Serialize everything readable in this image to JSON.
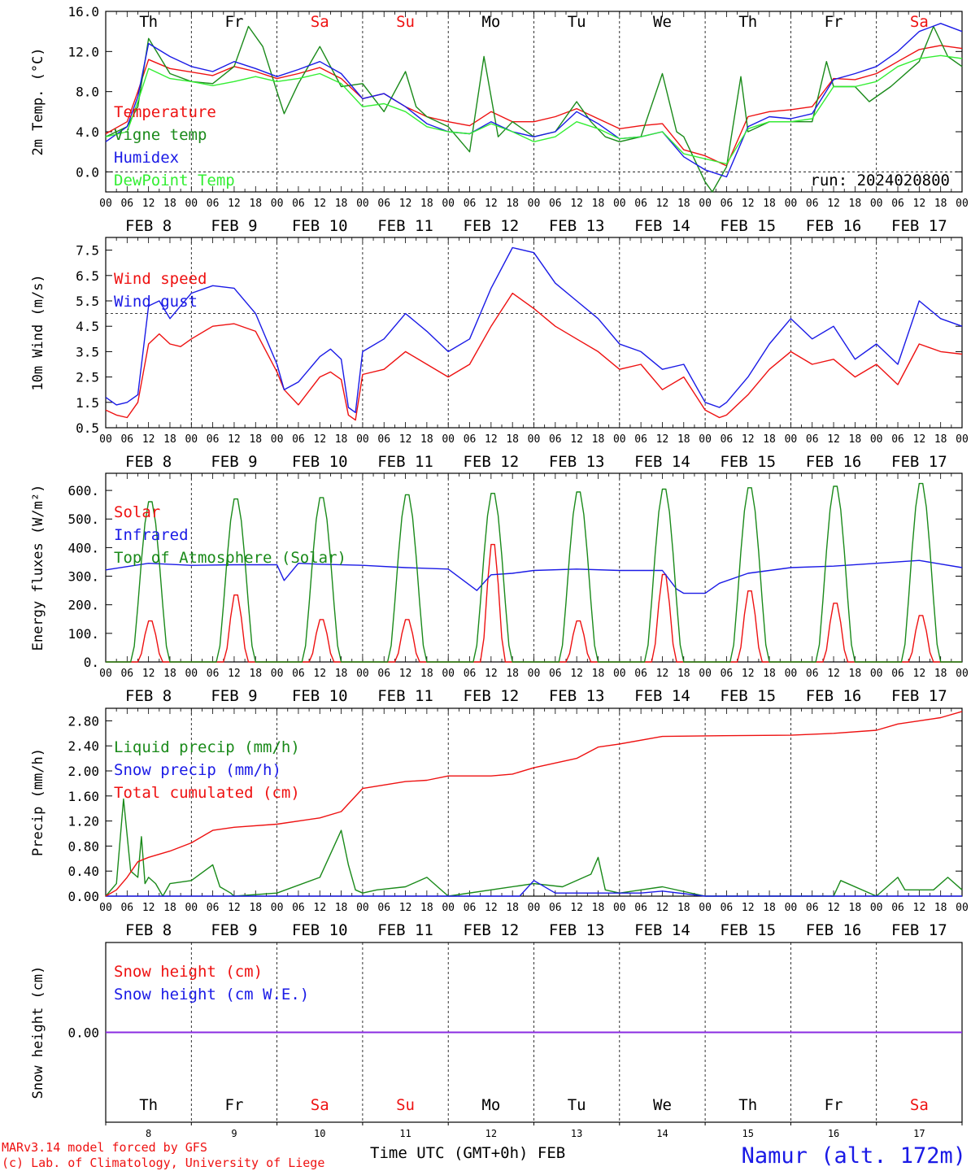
{
  "colors": {
    "red": "#ee1111",
    "dark_green": "#1a8a1a",
    "blue": "#1a1ae6",
    "light_green": "#33ee33",
    "purple": "#8a2be2",
    "axis": "#000000"
  },
  "timeline": {
    "hour_ticks": [
      "00",
      "06",
      "12",
      "18"
    ],
    "final_hour": "00",
    "date_labels": [
      "FEB  8",
      "FEB  9",
      "FEB 10",
      "FEB 11",
      "FEB 12",
      "FEB 13",
      "FEB 14",
      "FEB 15",
      "FEB 16",
      "FEB 17"
    ],
    "weekdays": [
      "Th",
      "Fr",
      "Sa",
      "Su",
      "Mo",
      "Tu",
      "We",
      "Th",
      "Fr",
      "Sa"
    ],
    "weekend_flags": [
      false,
      false,
      true,
      true,
      false,
      false,
      false,
      false,
      false,
      true
    ],
    "day_numbers": [
      "8",
      "9",
      "10",
      "11",
      "12",
      "13",
      "14",
      "15",
      "16",
      "17"
    ]
  },
  "chart_data": [
    {
      "type": "line",
      "ylabel": "2m Temp. (°C)",
      "ylim": [
        -2.0,
        16.0
      ],
      "yticks": [
        0.0,
        4.0,
        8.0,
        12.0,
        16.0
      ],
      "ytick_labels": [
        "0.0",
        "4.0",
        "8.0",
        "12.0",
        "16.0"
      ],
      "reference_line": 0.0,
      "annotation": "run: 2024020800",
      "x_unit": "hours since FEB 8 00 UTC",
      "series": [
        {
          "name": "Temperature",
          "color": "#ee1111",
          "x": [
            0,
            6,
            9,
            12,
            18,
            30,
            36,
            42,
            48,
            54,
            60,
            66,
            72,
            78,
            84,
            90,
            96,
            102,
            108,
            114,
            120,
            126,
            132,
            138,
            144,
            150,
            156,
            162,
            168,
            174,
            180,
            186,
            192,
            198,
            204,
            210,
            216,
            222,
            228,
            234,
            240
          ],
          "y": [
            3.8,
            5.0,
            8.0,
            11.2,
            10.3,
            9.6,
            10.5,
            10.0,
            9.3,
            9.8,
            10.4,
            9.3,
            7.3,
            7.8,
            6.5,
            5.5,
            5.0,
            4.6,
            6.0,
            5.0,
            5.0,
            5.5,
            6.3,
            5.3,
            4.3,
            4.6,
            4.8,
            2.2,
            1.6,
            0.6,
            5.5,
            6.0,
            6.2,
            6.5,
            9.3,
            9.2,
            9.8,
            11.0,
            12.2,
            12.6,
            12.3
          ]
        },
        {
          "name": "Vigne temp",
          "color": "#1a8a1a",
          "x": [
            0,
            6,
            9,
            12,
            18,
            24,
            30,
            36,
            40,
            44,
            48,
            50,
            54,
            60,
            66,
            72,
            78,
            84,
            87,
            90,
            96,
            102,
            106,
            110,
            114,
            120,
            126,
            132,
            136,
            140,
            144,
            150,
            156,
            160,
            162,
            168,
            170,
            174,
            178,
            180,
            186,
            192,
            198,
            202,
            204,
            210,
            214,
            220,
            228,
            232,
            236,
            240
          ],
          "y": [
            3.5,
            4.5,
            6.5,
            13.3,
            9.8,
            9.0,
            8.8,
            10.5,
            14.5,
            12.5,
            8.0,
            5.8,
            8.8,
            12.5,
            8.5,
            8.8,
            6.0,
            10.0,
            6.5,
            5.5,
            4.5,
            2.0,
            11.5,
            3.5,
            5.0,
            3.5,
            4.0,
            7.0,
            5.0,
            3.5,
            3.0,
            3.5,
            9.8,
            4.0,
            3.5,
            -1.0,
            -2.0,
            0.5,
            9.5,
            4.0,
            5.0,
            5.0,
            5.0,
            11.0,
            8.5,
            8.5,
            7.0,
            8.5,
            11.0,
            14.5,
            11.5,
            10.5
          ]
        },
        {
          "name": "Humidex",
          "color": "#1a1ae6",
          "x": [
            0,
            6,
            9,
            12,
            18,
            24,
            30,
            36,
            42,
            48,
            54,
            60,
            66,
            72,
            78,
            84,
            90,
            96,
            102,
            108,
            114,
            120,
            126,
            132,
            138,
            144,
            150,
            156,
            162,
            168,
            174,
            180,
            186,
            192,
            198,
            204,
            210,
            216,
            222,
            228,
            234,
            240
          ],
          "y": [
            3.0,
            4.5,
            7.5,
            12.8,
            11.5,
            10.5,
            10.0,
            11.0,
            10.3,
            9.5,
            10.2,
            11.0,
            9.8,
            7.3,
            7.8,
            6.5,
            4.8,
            4.0,
            3.8,
            5.0,
            4.0,
            3.5,
            4.0,
            6.0,
            4.8,
            3.3,
            3.5,
            4.0,
            1.5,
            0.2,
            -0.5,
            4.5,
            5.5,
            5.3,
            5.8,
            9.2,
            9.8,
            10.5,
            12.0,
            14.0,
            14.8,
            14.0
          ]
        },
        {
          "name": "DewPoint Temp",
          "color": "#33ee33",
          "x": [
            0,
            6,
            9,
            12,
            18,
            24,
            30,
            36,
            42,
            48,
            54,
            60,
            66,
            72,
            78,
            84,
            90,
            96,
            102,
            108,
            114,
            120,
            126,
            132,
            138,
            144,
            150,
            156,
            162,
            168,
            174,
            180,
            186,
            192,
            198,
            204,
            210,
            216,
            222,
            228,
            234,
            240
          ],
          "y": [
            3.5,
            4.0,
            7.0,
            10.3,
            9.3,
            9.0,
            8.6,
            9.0,
            9.5,
            9.0,
            9.3,
            9.8,
            8.8,
            6.5,
            6.8,
            6.0,
            4.5,
            4.0,
            3.8,
            4.8,
            4.0,
            3.0,
            3.5,
            5.0,
            4.3,
            3.3,
            3.5,
            4.0,
            1.8,
            1.3,
            0.8,
            4.3,
            5.0,
            5.0,
            5.3,
            8.5,
            8.5,
            9.0,
            10.5,
            11.3,
            11.6,
            11.3
          ]
        }
      ]
    },
    {
      "type": "line",
      "ylabel": "10m Wind (m/s)",
      "ylim": [
        0.5,
        8.0
      ],
      "yticks": [
        0.5,
        1.5,
        2.5,
        3.5,
        4.5,
        5.5,
        6.5,
        7.5
      ],
      "ytick_labels": [
        "0.5",
        "1.5",
        "2.5",
        "3.5",
        "4.5",
        "5.5",
        "6.5",
        "7.5"
      ],
      "reference_line": 5.0,
      "x_unit": "hours since FEB 8 00 UTC",
      "series": [
        {
          "name": "Wind speed",
          "color": "#ee1111",
          "x": [
            0,
            3,
            6,
            9,
            12,
            15,
            18,
            21,
            24,
            30,
            36,
            42,
            48,
            50,
            54,
            60,
            63,
            66,
            68,
            70,
            72,
            78,
            84,
            90,
            96,
            102,
            108,
            114,
            120,
            126,
            132,
            138,
            144,
            150,
            156,
            162,
            168,
            172,
            174,
            180,
            186,
            192,
            198,
            204,
            210,
            216,
            222,
            228,
            234,
            240
          ],
          "y": [
            1.2,
            1.0,
            0.9,
            1.5,
            3.8,
            4.2,
            3.8,
            3.7,
            4.0,
            4.5,
            4.6,
            4.3,
            2.7,
            2.0,
            1.4,
            2.5,
            2.7,
            2.4,
            1.0,
            0.8,
            2.6,
            2.8,
            3.5,
            3.0,
            2.5,
            3.0,
            4.5,
            5.8,
            5.2,
            4.5,
            4.0,
            3.5,
            2.8,
            3.0,
            2.0,
            2.5,
            1.2,
            0.9,
            1.0,
            1.8,
            2.8,
            3.5,
            3.0,
            3.2,
            2.5,
            3.0,
            2.2,
            3.8,
            3.5,
            3.4
          ]
        },
        {
          "name": "Wind gust",
          "color": "#1a1ae6",
          "x": [
            0,
            3,
            6,
            9,
            12,
            15,
            18,
            21,
            24,
            30,
            36,
            42,
            48,
            50,
            54,
            60,
            63,
            66,
            68,
            70,
            72,
            78,
            84,
            90,
            96,
            102,
            108,
            114,
            120,
            126,
            132,
            138,
            144,
            150,
            156,
            162,
            168,
            172,
            174,
            180,
            186,
            192,
            198,
            204,
            210,
            216,
            222,
            228,
            234,
            240
          ],
          "y": [
            1.7,
            1.4,
            1.5,
            1.8,
            5.3,
            5.5,
            4.8,
            5.3,
            5.8,
            6.1,
            6.0,
            5.0,
            3.0,
            2.0,
            2.3,
            3.3,
            3.6,
            3.2,
            1.3,
            1.1,
            3.5,
            4.0,
            5.0,
            4.3,
            3.5,
            4.0,
            6.0,
            7.6,
            7.4,
            6.2,
            5.5,
            4.8,
            3.8,
            3.5,
            2.8,
            3.0,
            1.5,
            1.3,
            1.5,
            2.5,
            3.8,
            4.8,
            4.0,
            4.5,
            3.2,
            3.8,
            3.0,
            5.5,
            4.8,
            4.5
          ]
        }
      ]
    },
    {
      "type": "line",
      "ylabel": "Energy fluxes (W/m²)",
      "ylim": [
        0,
        660
      ],
      "yticks": [
        0,
        100,
        200,
        300,
        400,
        500,
        600
      ],
      "ytick_labels": [
        "0.",
        "100.",
        "200.",
        "300.",
        "400.",
        "500.",
        "600."
      ],
      "x_unit": "hours since FEB 8 00 UTC",
      "series": [
        {
          "name": "Solar",
          "color": "#ee1111",
          "daily_peaks": [
            150,
            245,
            155,
            155,
            430,
            150,
            320,
            260,
            215,
            170
          ]
        },
        {
          "name": "Infrared",
          "color": "#1a1ae6",
          "x": [
            0,
            12,
            24,
            36,
            48,
            50,
            54,
            60,
            72,
            84,
            96,
            104,
            108,
            114,
            120,
            132,
            144,
            156,
            160,
            162,
            168,
            172,
            180,
            192,
            204,
            216,
            228,
            240
          ],
          "y": [
            322,
            345,
            338,
            340,
            340,
            285,
            345,
            342,
            338,
            330,
            325,
            250,
            305,
            310,
            320,
            325,
            320,
            320,
            255,
            240,
            240,
            275,
            310,
            330,
            335,
            345,
            355,
            330
          ]
        },
        {
          "name": "Top of Atmosphere (Solar)",
          "color": "#1a8a1a",
          "daily_peaks": [
            570,
            580,
            585,
            595,
            600,
            605,
            615,
            620,
            625,
            635
          ]
        }
      ]
    },
    {
      "type": "line",
      "ylabel": "Precip (mm/h)",
      "ylim": [
        0,
        3.0
      ],
      "yticks": [
        0.0,
        0.4,
        0.8,
        1.2,
        1.6,
        2.0,
        2.4,
        2.8
      ],
      "ytick_labels": [
        "0.00",
        "0.40",
        "0.80",
        "1.20",
        "1.60",
        "2.00",
        "2.40",
        "2.80"
      ],
      "x_unit": "hours since FEB 8 00 UTC",
      "series": [
        {
          "name": "Liquid precip (mm/h)",
          "color": "#1a8a1a",
          "x": [
            0,
            3,
            5,
            7,
            9,
            10,
            11,
            12,
            14,
            16,
            18,
            24,
            30,
            32,
            35,
            36,
            48,
            60,
            66,
            68,
            70,
            72,
            76,
            84,
            90,
            96,
            120,
            128,
            136,
            138,
            140,
            144,
            150,
            156,
            168,
            204,
            206,
            216,
            222,
            224,
            226,
            228,
            232,
            236,
            240
          ],
          "y": [
            0,
            0.2,
            1.55,
            0.4,
            0.3,
            0.95,
            0.2,
            0.3,
            0.2,
            0,
            0.2,
            0.25,
            0.5,
            0.15,
            0.05,
            0,
            0.05,
            0.3,
            1.05,
            0.5,
            0.1,
            0.05,
            0.1,
            0.15,
            0.3,
            0,
            0.2,
            0.15,
            0.35,
            0.62,
            0.1,
            0.05,
            0.1,
            0.15,
            0,
            0,
            0.25,
            0,
            0.3,
            0.1,
            0.1,
            0.1,
            0.1,
            0.3,
            0.1
          ]
        },
        {
          "name": "Snow precip (mm/h)",
          "color": "#1a1ae6",
          "x": [
            0,
            116,
            120,
            126,
            132,
            150,
            156,
            168,
            240
          ],
          "y": [
            0,
            0,
            0.25,
            0.05,
            0.05,
            0.05,
            0.08,
            0,
            0
          ]
        },
        {
          "name": "Total cumulated (cm)",
          "color": "#ee1111",
          "x": [
            0,
            3,
            6,
            9,
            12,
            18,
            24,
            30,
            36,
            48,
            60,
            66,
            72,
            84,
            90,
            96,
            108,
            114,
            120,
            132,
            138,
            144,
            156,
            168,
            192,
            204,
            216,
            222,
            228,
            234,
            240
          ],
          "y": [
            0,
            0.1,
            0.3,
            0.55,
            0.62,
            0.72,
            0.85,
            1.05,
            1.1,
            1.15,
            1.25,
            1.35,
            1.72,
            1.83,
            1.85,
            1.92,
            1.92,
            1.95,
            2.05,
            2.2,
            2.38,
            2.43,
            2.55,
            2.56,
            2.57,
            2.6,
            2.65,
            2.75,
            2.8,
            2.85,
            2.95
          ]
        }
      ]
    },
    {
      "type": "line",
      "ylabel": "Snow height (cm)",
      "ylim": [
        -1,
        1
      ],
      "yticks": [
        0.0
      ],
      "ytick_labels": [
        "0.00"
      ],
      "x_unit": "hours since FEB 8 00 UTC",
      "series": [
        {
          "name": "Snow height (cm)",
          "color": "#ee1111",
          "x": [
            0,
            240
          ],
          "y": [
            0,
            0
          ]
        },
        {
          "name": "Snow height (cm W.E.)",
          "color": "#1a1ae6",
          "x": [
            0,
            240
          ],
          "y": [
            0,
            0
          ]
        }
      ]
    }
  ],
  "footer": {
    "model_line": "MARv3.14 model forced by GFS",
    "credit_line": "(c) Lab. of Climatology, University of Liege",
    "xaxis_label": "Time UTC (GMT+0h) FEB",
    "station": "Namur (alt. 172m)"
  }
}
